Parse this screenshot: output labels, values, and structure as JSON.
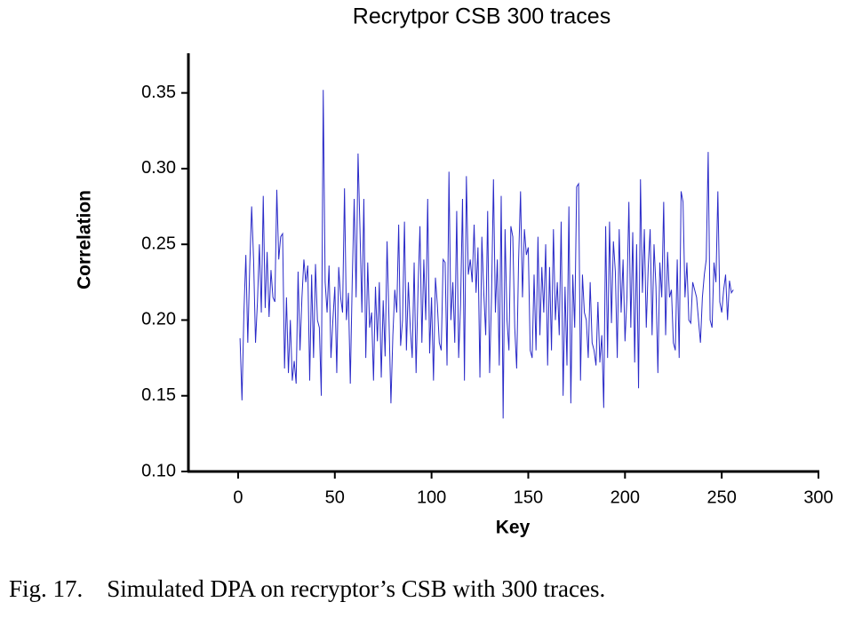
{
  "chart_data": {
    "type": "line",
    "title": "Recrytpor CSB 300 traces",
    "xlabel": "Key",
    "ylabel": "Correlation",
    "caption": "Fig. 17.    Simulated DPA on recryptor’s CSB with 300 traces.",
    "color": "#2a2ac8",
    "xlim": [
      -25.7,
      300
    ],
    "xticks": [
      0,
      50,
      100,
      150,
      200,
      250,
      300
    ],
    "ylim": [
      0.1,
      0.375
    ],
    "yticks": [
      {
        "value": 0.1,
        "label": "0.10"
      },
      0.15,
      {
        "value": 0.2,
        "label": "0.20"
      },
      0.25,
      {
        "value": 0.3,
        "label": "0.30"
      },
      0.35
    ],
    "x": [
      1,
      2,
      3,
      4,
      5,
      6,
      7,
      8,
      9,
      10,
      11,
      12,
      13,
      14,
      15,
      16,
      17,
      18,
      19,
      20,
      21,
      22,
      23,
      24,
      25,
      26,
      27,
      28,
      29,
      30,
      31,
      32,
      33,
      34,
      35,
      36,
      37,
      38,
      39,
      40,
      41,
      42,
      43,
      44,
      45,
      46,
      47,
      48,
      49,
      50,
      51,
      52,
      53,
      54,
      55,
      56,
      57,
      58,
      59,
      60,
      61,
      62,
      63,
      64,
      65,
      66,
      67,
      68,
      69,
      70,
      71,
      72,
      73,
      74,
      75,
      76,
      77,
      78,
      79,
      80,
      81,
      82,
      83,
      84,
      85,
      86,
      87,
      88,
      89,
      90,
      91,
      92,
      93,
      94,
      95,
      96,
      97,
      98,
      99,
      100,
      101,
      102,
      103,
      104,
      105,
      106,
      107,
      108,
      109,
      110,
      111,
      112,
      113,
      114,
      115,
      116,
      117,
      118,
      119,
      120,
      121,
      122,
      123,
      124,
      125,
      126,
      127,
      128,
      129,
      130,
      131,
      132,
      133,
      134,
      135,
      136,
      137,
      138,
      139,
      140,
      141,
      142,
      143,
      144,
      145,
      146,
      147,
      148,
      149,
      150,
      151,
      152,
      153,
      154,
      155,
      156,
      157,
      158,
      159,
      160,
      161,
      162,
      163,
      164,
      165,
      166,
      167,
      168,
      169,
      170,
      171,
      172,
      173,
      174,
      175,
      176,
      177,
      178,
      179,
      180,
      181,
      182,
      183,
      184,
      185,
      186,
      187,
      188,
      189,
      190,
      191,
      192,
      193,
      194,
      195,
      196,
      197,
      198,
      199,
      200,
      201,
      202,
      203,
      204,
      205,
      206,
      207,
      208,
      209,
      210,
      211,
      212,
      213,
      214,
      215,
      216,
      217,
      218,
      219,
      220,
      221,
      222,
      223,
      224,
      225,
      226,
      227,
      228,
      229,
      230,
      231,
      232,
      233,
      234,
      235,
      236,
      237,
      238,
      239,
      240,
      241,
      242,
      243,
      244,
      245,
      246,
      247,
      248,
      249,
      250,
      251,
      252,
      253,
      254,
      255,
      256
    ],
    "values": [
      0.188,
      0.147,
      0.205,
      0.243,
      0.185,
      0.235,
      0.275,
      0.24,
      0.185,
      0.212,
      0.25,
      0.205,
      0.282,
      0.208,
      0.245,
      0.202,
      0.233,
      0.215,
      0.212,
      0.286,
      0.24,
      0.255,
      0.257,
      0.168,
      0.215,
      0.165,
      0.2,
      0.16,
      0.173,
      0.158,
      0.232,
      0.18,
      0.215,
      0.24,
      0.225,
      0.236,
      0.16,
      0.23,
      0.175,
      0.237,
      0.2,
      0.195,
      0.15,
      0.352,
      0.225,
      0.205,
      0.236,
      0.175,
      0.2,
      0.222,
      0.165,
      0.235,
      0.215,
      0.205,
      0.287,
      0.2,
      0.218,
      0.158,
      0.226,
      0.28,
      0.215,
      0.31,
      0.26,
      0.205,
      0.28,
      0.175,
      0.238,
      0.195,
      0.205,
      0.16,
      0.222,
      0.186,
      0.225,
      0.162,
      0.213,
      0.176,
      0.252,
      0.2,
      0.145,
      0.19,
      0.22,
      0.205,
      0.263,
      0.183,
      0.2,
      0.265,
      0.18,
      0.225,
      0.195,
      0.175,
      0.238,
      0.165,
      0.22,
      0.262,
      0.185,
      0.24,
      0.2,
      0.28,
      0.178,
      0.215,
      0.16,
      0.228,
      0.21,
      0.185,
      0.18,
      0.24,
      0.238,
      0.17,
      0.298,
      0.2,
      0.225,
      0.185,
      0.272,
      0.175,
      0.21,
      0.28,
      0.16,
      0.295,
      0.23,
      0.24,
      0.225,
      0.263,
      0.218,
      0.248,
      0.162,
      0.255,
      0.218,
      0.19,
      0.272,
      0.165,
      0.215,
      0.293,
      0.205,
      0.24,
      0.17,
      0.282,
      0.135,
      0.26,
      0.2,
      0.18,
      0.262,
      0.255,
      0.195,
      0.168,
      0.24,
      0.285,
      0.215,
      0.26,
      0.243,
      0.248,
      0.18,
      0.175,
      0.23,
      0.18,
      0.255,
      0.19,
      0.235,
      0.205,
      0.25,
      0.17,
      0.235,
      0.18,
      0.26,
      0.2,
      0.225,
      0.19,
      0.265,
      0.15,
      0.222,
      0.17,
      0.275,
      0.145,
      0.23,
      0.195,
      0.288,
      0.29,
      0.16,
      0.23,
      0.205,
      0.2,
      0.175,
      0.225,
      0.185,
      0.18,
      0.17,
      0.212,
      0.172,
      0.19,
      0.142,
      0.262,
      0.175,
      0.265,
      0.198,
      0.252,
      0.232,
      0.175,
      0.26,
      0.205,
      0.24,
      0.186,
      0.215,
      0.278,
      0.195,
      0.258,
      0.172,
      0.25,
      0.155,
      0.293,
      0.218,
      0.26,
      0.195,
      0.235,
      0.26,
      0.19,
      0.25,
      0.222,
      0.165,
      0.238,
      0.215,
      0.278,
      0.19,
      0.245,
      0.215,
      0.22,
      0.185,
      0.18,
      0.24,
      0.175,
      0.285,
      0.278,
      0.215,
      0.238,
      0.2,
      0.198,
      0.225,
      0.22,
      0.215,
      0.2,
      0.185,
      0.215,
      0.23,
      0.24,
      0.311,
      0.2,
      0.195,
      0.238,
      0.225,
      0.285,
      0.212,
      0.205,
      0.22,
      0.23,
      0.2,
      0.226,
      0.218,
      0.22
    ]
  }
}
